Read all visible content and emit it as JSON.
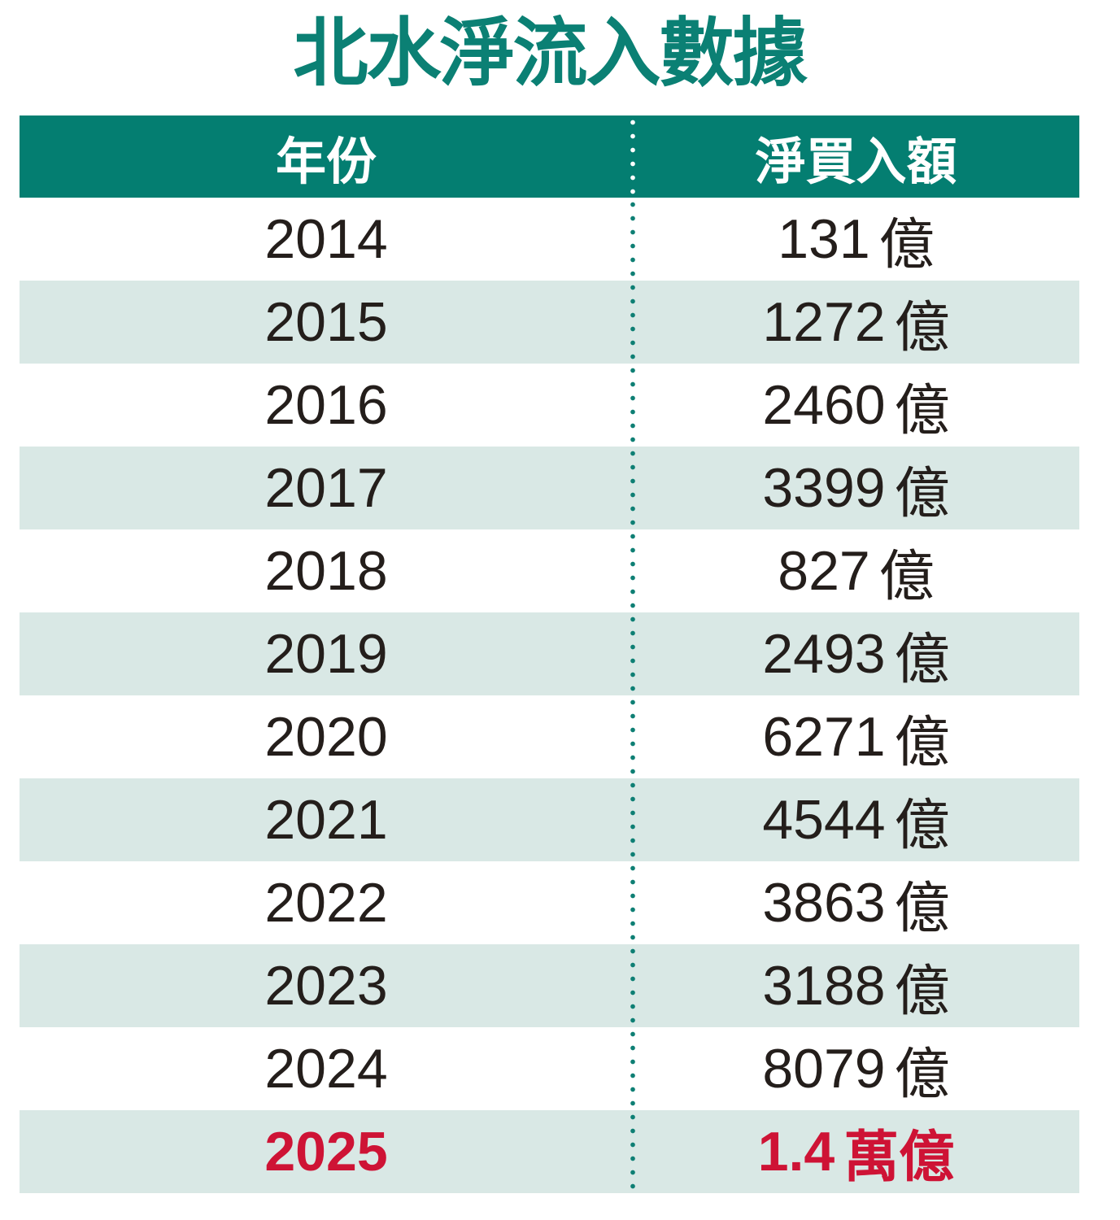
{
  "title": {
    "text": "北水淨流入數據"
  },
  "colors": {
    "title": "#0B8074",
    "header_bg": "#047E71",
    "header_text": "#FFFFFF",
    "row_alt_bg": "#D9E8E5",
    "row_bg": "#FFFFFF",
    "body_text": "#241E1B",
    "highlight_text": "#CE1335",
    "divider_dots_body": "#0E7F74",
    "divider_dots_header": "#FFFFFF"
  },
  "table": {
    "columns": [
      {
        "label": "年份"
      },
      {
        "label": "淨買入額"
      }
    ],
    "rows": [
      {
        "year": "2014",
        "amount": "131",
        "unit": "億"
      },
      {
        "year": "2015",
        "amount": "1272",
        "unit": "億"
      },
      {
        "year": "2016",
        "amount": "2460",
        "unit": "億"
      },
      {
        "year": "2017",
        "amount": "3399",
        "unit": "億"
      },
      {
        "year": "2018",
        "amount": "827",
        "unit": "億"
      },
      {
        "year": "2019",
        "amount": "2493",
        "unit": "億"
      },
      {
        "year": "2020",
        "amount": "6271",
        "unit": "億"
      },
      {
        "year": "2021",
        "amount": "4544",
        "unit": "億"
      },
      {
        "year": "2022",
        "amount": "3863",
        "unit": "億"
      },
      {
        "year": "2023",
        "amount": "3188",
        "unit": "億"
      },
      {
        "year": "2024",
        "amount": "8079",
        "unit": "億"
      },
      {
        "year": "2025",
        "amount": "1.4",
        "unit": "萬億"
      }
    ]
  },
  "chart_data": {
    "type": "table",
    "title": "北水淨流入數據",
    "columns": [
      "年份",
      "淨買入額"
    ],
    "categories": [
      "2014",
      "2015",
      "2016",
      "2017",
      "2018",
      "2019",
      "2020",
      "2021",
      "2022",
      "2023",
      "2024",
      "2025"
    ],
    "values_text": [
      "131億",
      "1272億",
      "2460億",
      "3399億",
      "827億",
      "2493億",
      "6271億",
      "4544億",
      "3863億",
      "3188億",
      "8079億",
      "1.4萬億"
    ],
    "values_billion": [
      131,
      1272,
      2460,
      3399,
      827,
      2493,
      6271,
      4544,
      3863,
      3188,
      8079,
      14000
    ],
    "unit": "億",
    "highlight_row": "2025",
    "layout": {
      "alternating_rows": true,
      "divider": "dotted-vertical"
    }
  }
}
